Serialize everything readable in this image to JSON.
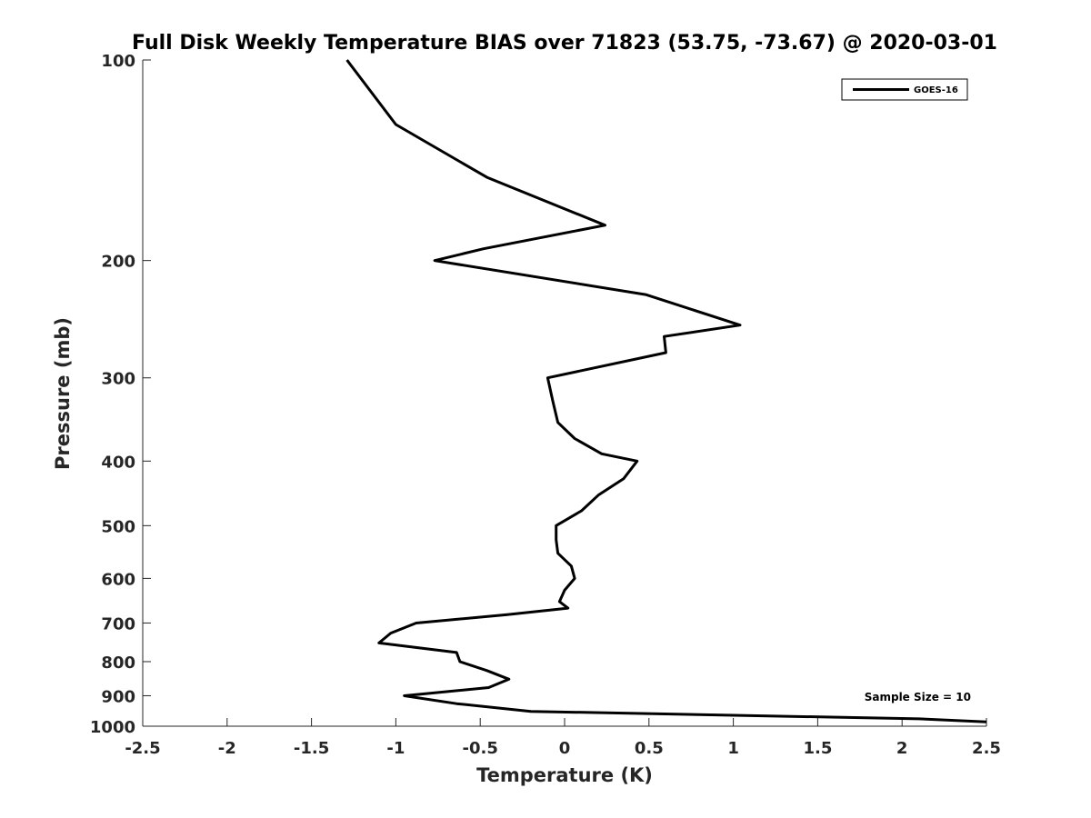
{
  "chart_data": {
    "type": "line",
    "title": "Full Disk Weekly Temperature BIAS over 71823 (53.75, -73.67) @ 2020-03-01",
    "xlabel": "Temperature (K)",
    "ylabel": "Pressure (mb)",
    "xlim": [
      -2.5,
      2.5
    ],
    "ylim": [
      1000,
      100
    ],
    "y_scale": "log",
    "y_reversed": true,
    "xticks": [
      "-2.5",
      "-2",
      "-1.5",
      "-1",
      "-0.5",
      "0",
      "0.5",
      "1",
      "1.5",
      "2",
      "2.5"
    ],
    "yticks": [
      "100",
      "200",
      "300",
      "400",
      "500",
      "600",
      "700",
      "800",
      "900",
      "1000"
    ],
    "grid": false,
    "legend": {
      "position": "top-right",
      "entries": [
        "GOES-16"
      ]
    },
    "annotation": "Sample Size = 10",
    "series": [
      {
        "name": "GOES-16",
        "color": "#000000",
        "points": [
          {
            "x": -1.29,
            "y": 100
          },
          {
            "x": -1.0,
            "y": 125
          },
          {
            "x": -0.46,
            "y": 150
          },
          {
            "x": 0.24,
            "y": 177
          },
          {
            "x": -0.48,
            "y": 192
          },
          {
            "x": -0.77,
            "y": 200
          },
          {
            "x": 0.48,
            "y": 225
          },
          {
            "x": 1.04,
            "y": 250
          },
          {
            "x": 0.59,
            "y": 260
          },
          {
            "x": 0.6,
            "y": 275
          },
          {
            "x": -0.1,
            "y": 300
          },
          {
            "x": -0.07,
            "y": 325
          },
          {
            "x": -0.04,
            "y": 350
          },
          {
            "x": 0.06,
            "y": 370
          },
          {
            "x": 0.22,
            "y": 390
          },
          {
            "x": 0.43,
            "y": 400
          },
          {
            "x": 0.35,
            "y": 425
          },
          {
            "x": 0.2,
            "y": 450
          },
          {
            "x": 0.1,
            "y": 475
          },
          {
            "x": -0.05,
            "y": 500
          },
          {
            "x": -0.05,
            "y": 525
          },
          {
            "x": -0.04,
            "y": 550
          },
          {
            "x": 0.04,
            "y": 575
          },
          {
            "x": 0.06,
            "y": 600
          },
          {
            "x": 0.0,
            "y": 625
          },
          {
            "x": -0.03,
            "y": 650
          },
          {
            "x": 0.02,
            "y": 665
          },
          {
            "x": -0.34,
            "y": 680
          },
          {
            "x": -0.88,
            "y": 700
          },
          {
            "x": -1.03,
            "y": 725
          },
          {
            "x": -1.1,
            "y": 750
          },
          {
            "x": -0.64,
            "y": 775
          },
          {
            "x": -0.62,
            "y": 800
          },
          {
            "x": -0.46,
            "y": 825
          },
          {
            "x": -0.33,
            "y": 850
          },
          {
            "x": -0.45,
            "y": 875
          },
          {
            "x": -0.95,
            "y": 900
          },
          {
            "x": -0.64,
            "y": 925
          },
          {
            "x": -0.2,
            "y": 950
          },
          {
            "x": 2.1,
            "y": 975
          },
          {
            "x": 2.5,
            "y": 985
          }
        ]
      }
    ]
  }
}
